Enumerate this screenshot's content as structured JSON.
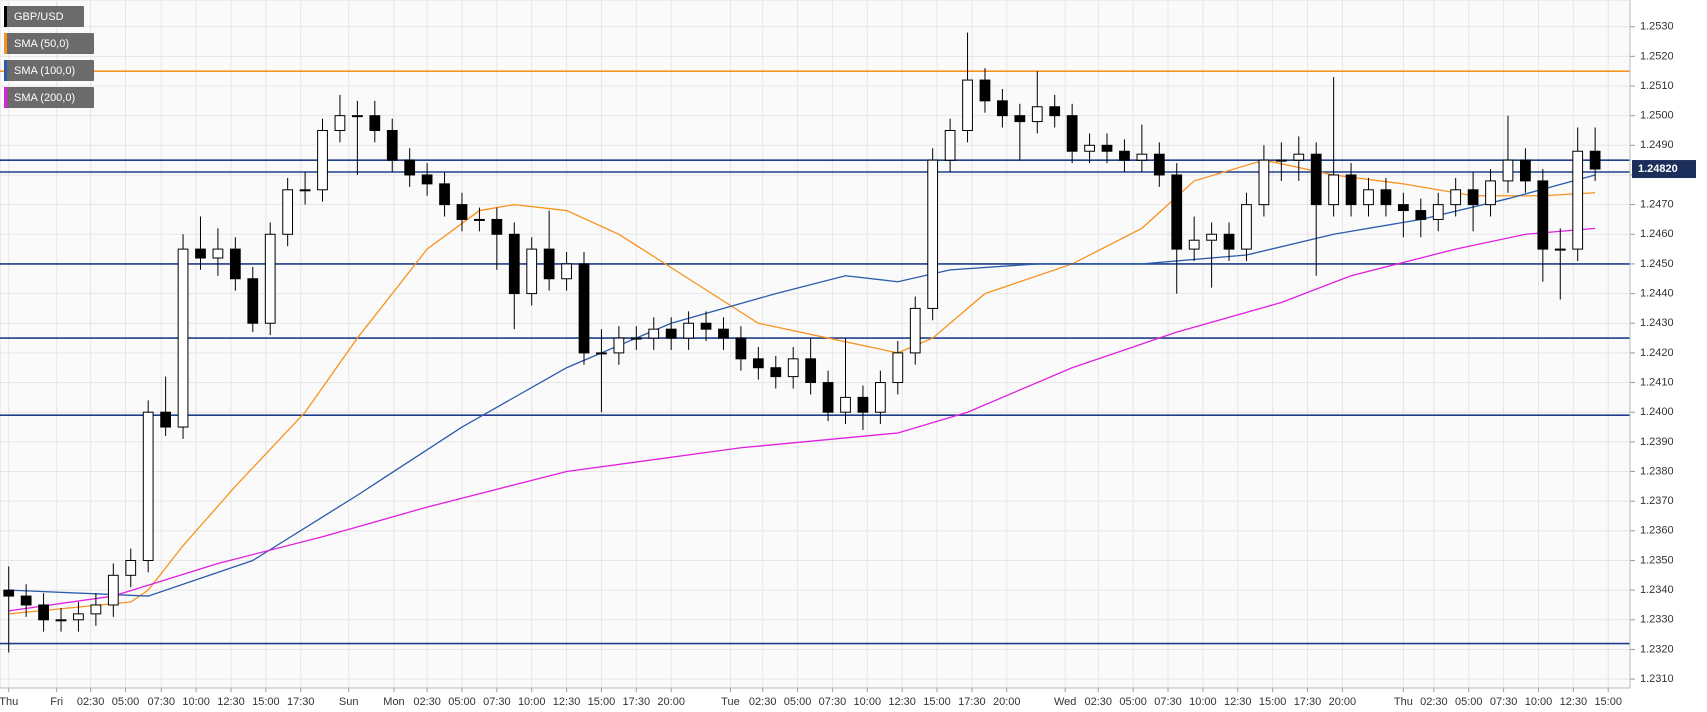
{
  "chart_data": {
    "type": "candlestick",
    "grid": true,
    "xlim": [
      -0.5,
      93
    ],
    "ylim": [
      1.2307,
      1.2539
    ],
    "yticks": [
      {
        "value": 1.231,
        "label": "1.2310"
      },
      {
        "value": 1.232,
        "label": "1.2320"
      },
      {
        "value": 1.233,
        "label": "1.2330"
      },
      {
        "value": 1.234,
        "label": "1.2340"
      },
      {
        "value": 1.235,
        "label": "1.2350"
      },
      {
        "value": 1.236,
        "label": "1.2360"
      },
      {
        "value": 1.237,
        "label": "1.2370"
      },
      {
        "value": 1.238,
        "label": "1.2380"
      },
      {
        "value": 1.239,
        "label": "1.2390"
      },
      {
        "value": 1.24,
        "label": "1.2400"
      },
      {
        "value": 1.241,
        "label": "1.2410"
      },
      {
        "value": 1.242,
        "label": "1.2420"
      },
      {
        "value": 1.243,
        "label": "1.2430"
      },
      {
        "value": 1.244,
        "label": "1.2440"
      },
      {
        "value": 1.245,
        "label": "1.2450"
      },
      {
        "value": 1.246,
        "label": "1.2460"
      },
      {
        "value": 1.247,
        "label": "1.2470"
      },
      {
        "value": 1.248,
        "label": "1.2480"
      },
      {
        "value": 1.249,
        "label": "1.2490"
      },
      {
        "value": 1.25,
        "label": "1.2500"
      },
      {
        "value": 1.251,
        "label": "1.2510"
      },
      {
        "value": 1.252,
        "label": "1.2520"
      },
      {
        "value": 1.253,
        "label": "1.2530"
      }
    ],
    "xticks": [
      {
        "value": 0,
        "label": "Thu"
      },
      {
        "value": 2.75,
        "label": "Fri"
      },
      {
        "value": 4.7,
        "label": "02:30"
      },
      {
        "value": 6.7,
        "label": "05:00"
      },
      {
        "value": 8.75,
        "label": "07:30"
      },
      {
        "value": 10.75,
        "label": "10:00"
      },
      {
        "value": 12.75,
        "label": "12:30"
      },
      {
        "value": 14.75,
        "label": "15:00"
      },
      {
        "value": 16.75,
        "label": "17:30"
      },
      {
        "value": 19.5,
        "label": "Sun"
      },
      {
        "value": 22.1,
        "label": "Mon"
      },
      {
        "value": 24,
        "label": "02:30"
      },
      {
        "value": 26,
        "label": "05:00"
      },
      {
        "value": 28,
        "label": "07:30"
      },
      {
        "value": 30,
        "label": "10:00"
      },
      {
        "value": 32,
        "label": "12:30"
      },
      {
        "value": 34,
        "label": "15:00"
      },
      {
        "value": 36,
        "label": "17:30"
      },
      {
        "value": 38,
        "label": "20:00"
      },
      {
        "value": 41.4,
        "label": "Tue"
      },
      {
        "value": 43.25,
        "label": "02:30"
      },
      {
        "value": 45.25,
        "label": "05:00"
      },
      {
        "value": 47.25,
        "label": "07:30"
      },
      {
        "value": 49.25,
        "label": "10:00"
      },
      {
        "value": 51.25,
        "label": "12:30"
      },
      {
        "value": 53.25,
        "label": "15:00"
      },
      {
        "value": 55.25,
        "label": "17:30"
      },
      {
        "value": 57.25,
        "label": "20:00"
      },
      {
        "value": 60.6,
        "label": "Wed"
      },
      {
        "value": 62.5,
        "label": "02:30"
      },
      {
        "value": 64.5,
        "label": "05:00"
      },
      {
        "value": 66.5,
        "label": "07:30"
      },
      {
        "value": 68.5,
        "label": "10:00"
      },
      {
        "value": 70.5,
        "label": "12:30"
      },
      {
        "value": 72.5,
        "label": "15:00"
      },
      {
        "value": 74.5,
        "label": "17:30"
      },
      {
        "value": 76.5,
        "label": "20:00"
      },
      {
        "value": 80,
        "label": "Thu"
      },
      {
        "value": 81.75,
        "label": "02:30"
      },
      {
        "value": 83.75,
        "label": "05:00"
      },
      {
        "value": 85.75,
        "label": "07:30"
      },
      {
        "value": 87.75,
        "label": "10:00"
      },
      {
        "value": 89.75,
        "label": "12:30"
      },
      {
        "value": 91.75,
        "label": "15:00"
      }
    ],
    "series": [
      {
        "name": "GBP/USD",
        "type": "candlestick",
        "color": "#000000",
        "open": [
          1.234,
          1.2338,
          1.2335,
          1.233,
          1.233,
          1.2332,
          1.2335,
          1.2345,
          1.235,
          1.24,
          1.2395,
          1.2455,
          1.2452,
          1.2455,
          1.2445,
          1.243,
          1.246,
          1.2475,
          1.2475,
          1.2495,
          1.25,
          1.25,
          1.2495,
          1.2485,
          1.248,
          1.2477,
          1.247,
          1.2465,
          1.2465,
          1.246,
          1.244,
          1.2455,
          1.2445,
          1.245,
          1.242,
          1.242,
          1.2425,
          1.2425,
          1.2428,
          1.2425,
          1.243,
          1.2428,
          1.2425,
          1.2418,
          1.2415,
          1.2412,
          1.2418,
          1.241,
          1.24,
          1.2405,
          1.24,
          1.241,
          1.242,
          1.2435,
          1.2485,
          1.2495,
          1.2512,
          1.2505,
          1.25,
          1.2498,
          1.2503,
          1.25,
          1.2488,
          1.249,
          1.2488,
          1.2485,
          1.2487,
          1.248,
          1.2455,
          1.2458,
          1.246,
          1.2455,
          1.247,
          1.2485,
          1.2485,
          1.2487,
          1.247,
          1.248,
          1.247,
          1.2475,
          1.247,
          1.2468,
          1.2465,
          1.247,
          1.2475,
          1.247,
          1.2478,
          1.2485,
          1.2478,
          1.2455,
          1.2455,
          1.2488
        ],
        "high": [
          1.2348,
          1.2342,
          1.2339,
          1.2334,
          1.2336,
          1.2339,
          1.2349,
          1.2354,
          1.2404,
          1.2412,
          1.246,
          1.2466,
          1.2462,
          1.2459,
          1.2449,
          1.2464,
          1.2479,
          1.2481,
          1.2499,
          1.2507,
          1.2505,
          1.2505,
          1.2499,
          1.2489,
          1.2484,
          1.2481,
          1.2474,
          1.2469,
          1.2469,
          1.2464,
          1.2459,
          1.2468,
          1.2454,
          1.2454,
          1.2428,
          1.2429,
          1.2429,
          1.2432,
          1.2432,
          1.2434,
          1.2434,
          1.2432,
          1.2429,
          1.2422,
          1.2419,
          1.2422,
          1.2425,
          1.2414,
          1.2425,
          1.2409,
          1.2414,
          1.2424,
          1.2439,
          1.2489,
          1.2499,
          1.2528,
          1.2516,
          1.2509,
          1.2504,
          1.2515,
          1.2507,
          1.2504,
          1.2494,
          1.2494,
          1.2492,
          1.2497,
          1.2491,
          1.2484,
          1.2466,
          1.2464,
          1.2464,
          1.2474,
          1.249,
          1.2491,
          1.2493,
          1.2491,
          1.2513,
          1.2484,
          1.2479,
          1.2479,
          1.2474,
          1.2472,
          1.2474,
          1.2479,
          1.2481,
          1.2482,
          1.25,
          1.2489,
          1.2482,
          1.2462,
          1.2496,
          1.2496
        ],
        "low": [
          1.2319,
          1.2331,
          1.2326,
          1.2326,
          1.2326,
          1.2328,
          1.2331,
          1.2341,
          1.2346,
          1.2392,
          1.2391,
          1.2448,
          1.2446,
          1.2441,
          1.2427,
          1.2426,
          1.2456,
          1.247,
          1.2471,
          1.2491,
          1.248,
          1.2491,
          1.2481,
          1.2476,
          1.2473,
          1.2466,
          1.2461,
          1.2461,
          1.2448,
          1.2428,
          1.2436,
          1.2441,
          1.2441,
          1.2416,
          1.24,
          1.2416,
          1.2421,
          1.2421,
          1.2421,
          1.2421,
          1.2424,
          1.2421,
          1.2414,
          1.2411,
          1.2408,
          1.2408,
          1.2406,
          1.2397,
          1.2396,
          1.2394,
          1.2396,
          1.2406,
          1.2416,
          1.2431,
          1.2481,
          1.2491,
          1.2501,
          1.2496,
          1.2485,
          1.2494,
          1.2496,
          1.2484,
          1.2484,
          1.2484,
          1.2481,
          1.2481,
          1.2476,
          1.244,
          1.2451,
          1.2442,
          1.2451,
          1.2451,
          1.2466,
          1.2478,
          1.2478,
          1.2446,
          1.2466,
          1.2466,
          1.2466,
          1.2466,
          1.2459,
          1.2459,
          1.2461,
          1.2466,
          1.2461,
          1.2466,
          1.2474,
          1.2474,
          1.2444,
          1.2438,
          1.2451,
          1.2478
        ],
        "close": [
          1.2338,
          1.2335,
          1.233,
          1.233,
          1.2332,
          1.2335,
          1.2345,
          1.235,
          1.24,
          1.2395,
          1.2455,
          1.2452,
          1.2455,
          1.2445,
          1.243,
          1.246,
          1.2475,
          1.2475,
          1.2495,
          1.25,
          1.25,
          1.2495,
          1.2485,
          1.248,
          1.2477,
          1.247,
          1.2465,
          1.2465,
          1.246,
          1.244,
          1.2455,
          1.2445,
          1.245,
          1.242,
          1.242,
          1.2425,
          1.2425,
          1.2428,
          1.2425,
          1.243,
          1.2428,
          1.2425,
          1.2418,
          1.2415,
          1.2412,
          1.2418,
          1.241,
          1.24,
          1.2405,
          1.24,
          1.241,
          1.242,
          1.2435,
          1.2485,
          1.2495,
          1.2512,
          1.2505,
          1.25,
          1.2498,
          1.2503,
          1.25,
          1.2488,
          1.249,
          1.2488,
          1.2485,
          1.2487,
          1.248,
          1.2455,
          1.2458,
          1.246,
          1.2455,
          1.247,
          1.2485,
          1.2485,
          1.2487,
          1.247,
          1.248,
          1.247,
          1.2475,
          1.247,
          1.2468,
          1.2465,
          1.247,
          1.2475,
          1.247,
          1.2478,
          1.2485,
          1.2478,
          1.2455,
          1.2455,
          1.2488,
          1.2482
        ]
      },
      {
        "name": "SMA (50,0)",
        "type": "line",
        "color": "#f7931e",
        "x": [
          0,
          7,
          8,
          10,
          13,
          17,
          20,
          24,
          27,
          29,
          32,
          35,
          39,
          43,
          47,
          51,
          53,
          56,
          61,
          65,
          68,
          72,
          76,
          80,
          84,
          88,
          91
        ],
        "values": [
          1.2332,
          1.2336,
          1.234,
          1.2355,
          1.2375,
          1.24,
          1.2425,
          1.2455,
          1.2468,
          1.247,
          1.2468,
          1.246,
          1.2445,
          1.243,
          1.2425,
          1.242,
          1.2425,
          1.244,
          1.245,
          1.2462,
          1.2478,
          1.2485,
          1.248,
          1.2477,
          1.2473,
          1.2473,
          1.2474
        ]
      },
      {
        "name": "SMA (100,0)",
        "type": "line",
        "color": "#2a5caa",
        "x": [
          0,
          8,
          14,
          20,
          26,
          32,
          38,
          44,
          48,
          51,
          54,
          59,
          65,
          71,
          76,
          81,
          86,
          91
        ],
        "values": [
          1.234,
          1.2338,
          1.235,
          1.2372,
          1.2395,
          1.2415,
          1.243,
          1.244,
          1.2446,
          1.2444,
          1.2448,
          1.245,
          1.245,
          1.2453,
          1.246,
          1.2465,
          1.2472,
          1.248
        ]
      },
      {
        "name": "SMA (200,0)",
        "type": "line",
        "color": "#e020e0",
        "x": [
          0,
          6,
          12,
          18,
          24,
          32,
          42,
          51,
          55,
          61,
          67,
          73,
          77,
          83,
          87,
          91
        ],
        "values": [
          1.2333,
          1.2338,
          1.2349,
          1.2358,
          1.2368,
          1.238,
          1.2388,
          1.2393,
          1.24,
          1.2415,
          1.2427,
          1.2437,
          1.2446,
          1.2455,
          1.246,
          1.2462
        ]
      }
    ],
    "horizontal_lines": [
      {
        "value": 1.2515,
        "color": "#f7931e"
      },
      {
        "value": 1.2485,
        "color": "#1f3f8a"
      },
      {
        "value": 1.2481,
        "color": "#1f3f8a"
      },
      {
        "value": 1.245,
        "color": "#1f3f8a"
      },
      {
        "value": 1.2425,
        "color": "#1f3f8a"
      },
      {
        "value": 1.2399,
        "color": "#1f3f8a"
      },
      {
        "value": 1.2322,
        "color": "#1f3f8a"
      }
    ],
    "last_price": {
      "value": 1.2482,
      "label": "1.24820",
      "color": "#1c2f5a"
    }
  }
}
